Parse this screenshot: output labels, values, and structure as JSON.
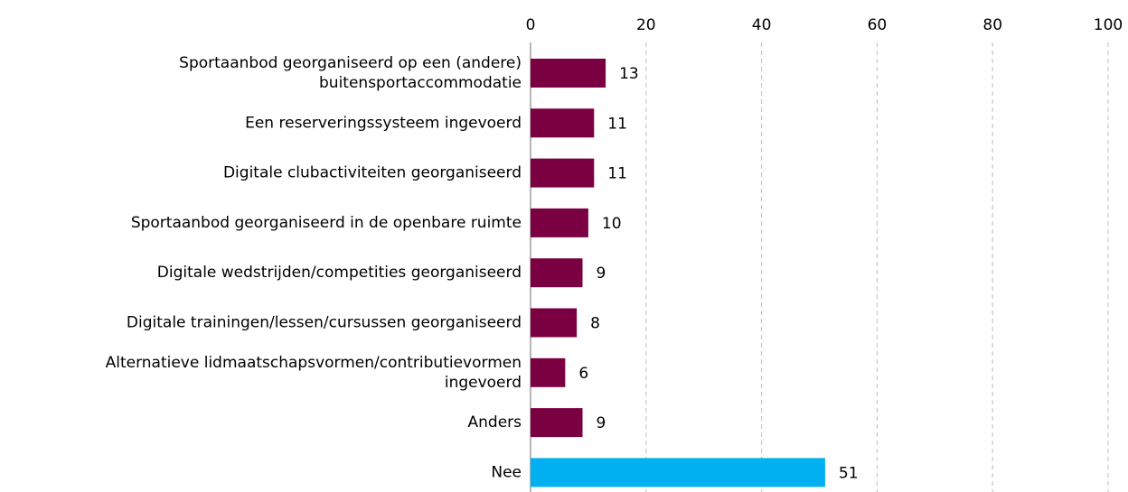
{
  "chart_data": {
    "type": "barh",
    "categories": [
      "Sportaanbod georganiseerd op een (andere)\nbuitensportaccommodatie",
      "Een reserveringssysteem ingevoerd",
      "Digitale clubactiviteiten georganiseerd",
      "Sportaanbod georganiseerd in de openbare ruimte",
      "Digitale wedstrijden/competities georganiseerd",
      "Digitale trainingen/lessen/cursussen georganiseerd",
      "Alternatieve lidmaatschapsvormen/contributievormen\ningevoerd",
      "Anders",
      "Nee"
    ],
    "values": [
      13,
      11,
      11,
      10,
      9,
      8,
      6,
      9,
      51
    ],
    "colors": [
      "#7b0041",
      "#7b0041",
      "#7b0041",
      "#7b0041",
      "#7b0041",
      "#7b0041",
      "#7b0041",
      "#7b0041",
      "#00b0f0"
    ],
    "xlim": [
      0,
      100
    ],
    "xticks": [
      0,
      20,
      40,
      60,
      80,
      100
    ],
    "grid": true
  }
}
